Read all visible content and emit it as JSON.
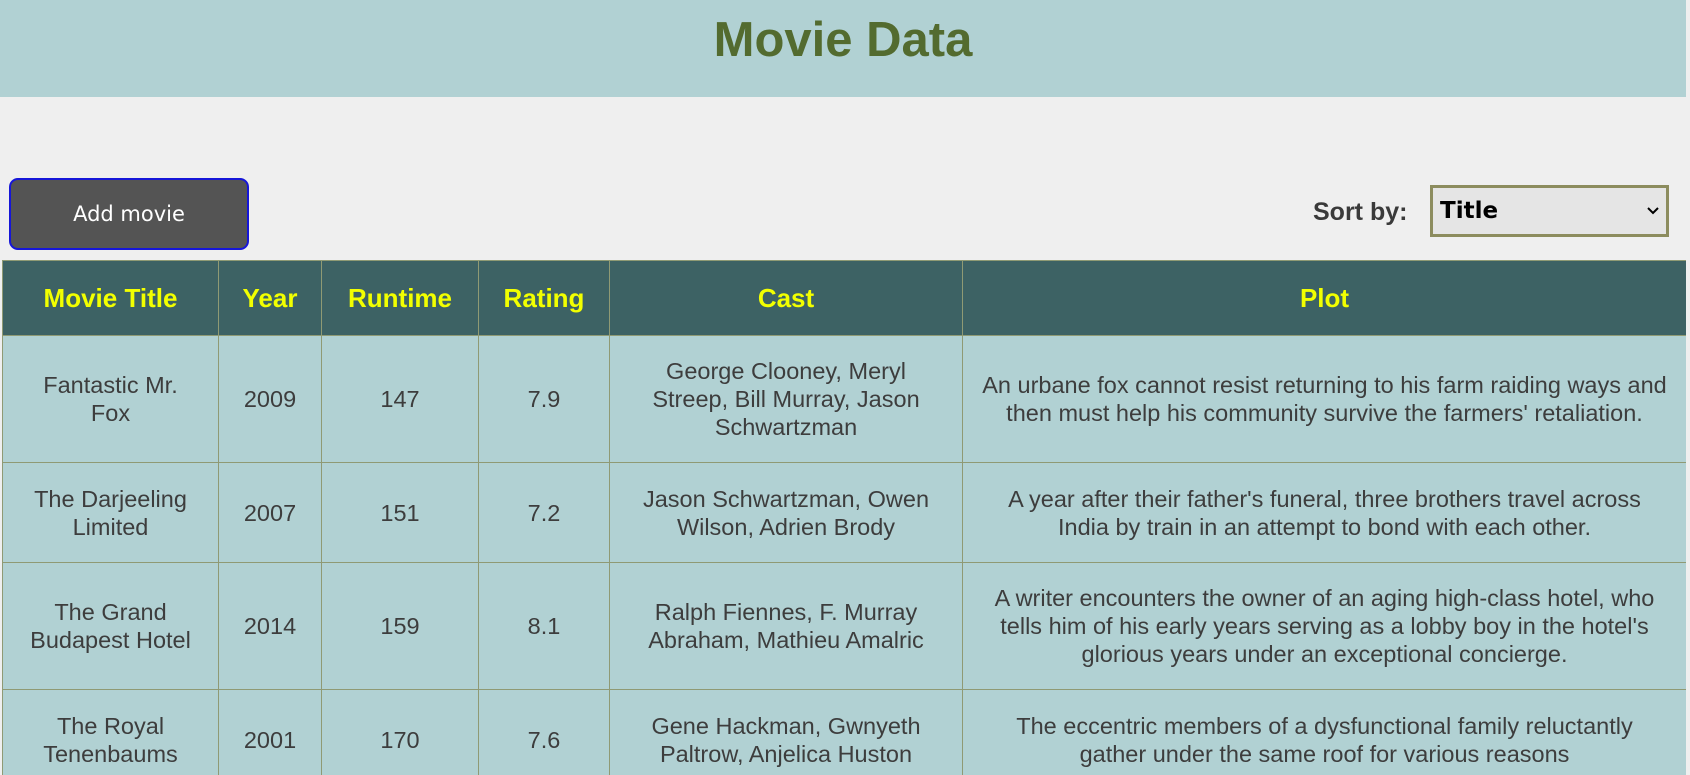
{
  "header": {
    "title": "Movie Data"
  },
  "toolbar": {
    "add_label": "Add movie",
    "sort_label": "Sort by:",
    "sort_value": "Title"
  },
  "table": {
    "columns": [
      "Movie Title",
      "Year",
      "Runtime",
      "Rating",
      "Cast",
      "Plot"
    ],
    "rows": [
      {
        "title": "Fantastic Mr. Fox",
        "year": "2009",
        "runtime": "147",
        "rating": "7.9",
        "cast": "George Clooney, Meryl Streep, Bill Murray, Jason Schwartzman",
        "plot": "An urbane fox cannot resist returning to his farm raiding ways and then must help his community survive the farmers' retaliation."
      },
      {
        "title": "The Darjeeling Limited",
        "year": "2007",
        "runtime": "151",
        "rating": "7.2",
        "cast": "Jason Schwartzman, Owen Wilson, Adrien Brody",
        "plot": "A year after their father's funeral, three brothers travel across India by train in an attempt to bond with each other."
      },
      {
        "title": "The Grand Budapest Hotel",
        "year": "2014",
        "runtime": "159",
        "rating": "8.1",
        "cast": "Ralph Fiennes, F. Murray Abraham, Mathieu Amalric",
        "plot": "A writer encounters the owner of an aging high-class hotel, who tells him of his early years serving as a lobby boy in the hotel's glorious years under an exceptional concierge."
      },
      {
        "title": "The Royal Tenenbaums",
        "year": "2001",
        "runtime": "170",
        "rating": "7.6",
        "cast": "Gene Hackman, Gwnyeth Paltrow, Anjelica Huston",
        "plot": "The eccentric members of a dysfunctional family reluctantly gather under the same roof for various reasons"
      }
    ]
  },
  "colors": {
    "header_bg": "#b1d1d3",
    "title_color": "#536b2f",
    "table_header_bg": "#3d6264",
    "table_header_text": "#f2ff00",
    "cell_bg": "#b1d1d3",
    "button_bg": "#545454",
    "button_border": "#1616d8"
  },
  "icons": {
    "sort_dropdown": "chevron-down-icon"
  }
}
